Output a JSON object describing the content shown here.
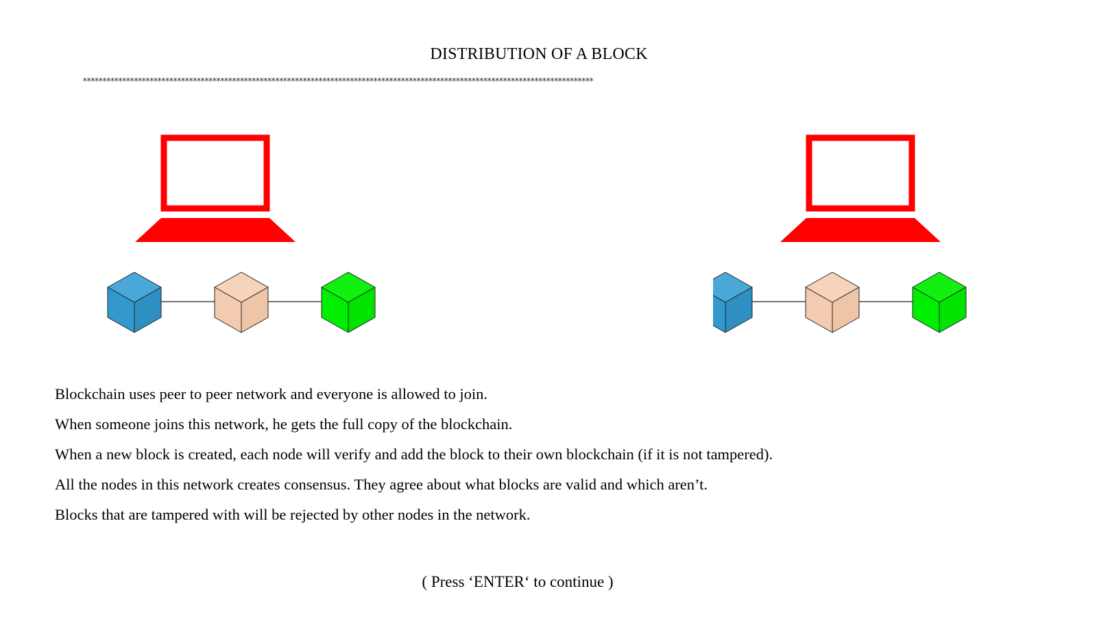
{
  "title": "DISTRIBUTION OF A BLOCK",
  "divider": "**********************************************************************************************************************************",
  "colors": {
    "laptop": "#ff0000",
    "block_1": "#3399cc",
    "block_2": "#f2cbb0",
    "block_3": "#00ee00",
    "outline": "#222222"
  },
  "nodes": [
    {
      "icon": "laptop-icon",
      "blocks": [
        "blue-block",
        "peach-block",
        "green-block"
      ]
    },
    {
      "icon": "laptop-icon",
      "blocks": [
        "blue-block",
        "peach-block",
        "green-block"
      ]
    }
  ],
  "paragraphs": [
    "Blockchain uses peer to peer network and everyone is allowed to join.",
    "When someone joins this network, he gets the full copy of the blockchain.",
    "When a new block is created, each node will verify and add the block to their own blockchain (if it is not tampered).",
    "All the nodes in this network creates consensus. They agree about what blocks are valid and which aren’t.",
    "Blocks that are tampered with will be rejected by other nodes in the network."
  ],
  "prompt": "( Press ‘ENTER‘ to continue )"
}
